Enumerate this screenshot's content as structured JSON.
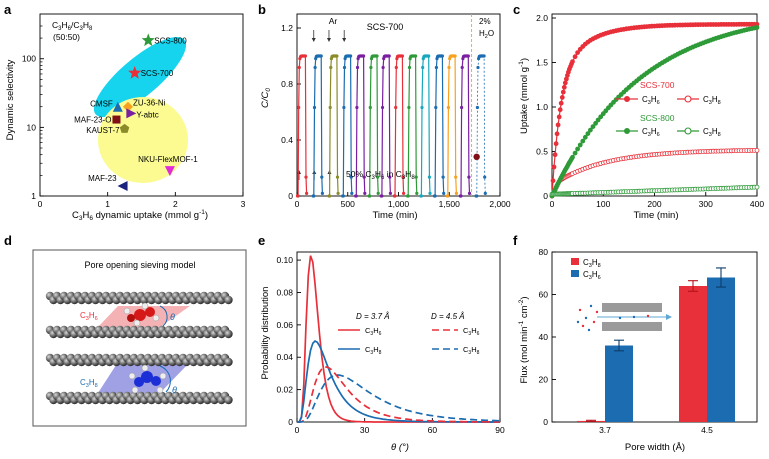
{
  "colors": {
    "red": "#e8303a",
    "blue": "#1b6cb0",
    "green": "#2e9a38",
    "cyan": "#17d4ee",
    "yellow": "#fbfb92",
    "navy": "#1a237e",
    "magenta": "#e22bd8",
    "purple": "#7b1fa2",
    "olive": "#8b8b2a",
    "orange": "#f7a21e",
    "maroon": "#7f1016",
    "sheet": "#5a5a5a"
  },
  "panel_labels": {
    "a": "a",
    "b": "b",
    "c": "c",
    "d": "d",
    "e": "e",
    "f": "f"
  },
  "chart_data": [
    {
      "id": "a",
      "type": "scatter",
      "xlabel": "C3H6 dynamic uptake (mmol g-1)",
      "xlabel_parts": [
        "C",
        "3",
        "H",
        "6",
        " dynamic uptake (mmol g",
        "-1",
        ")"
      ],
      "ylabel": "Dynamic selectivity",
      "xlim": [
        0,
        3
      ],
      "ylim_log": [
        1,
        300
      ],
      "xticks": [
        "0",
        "1",
        "2",
        "3"
      ],
      "yticks": [
        "1",
        "10",
        "100"
      ],
      "title_lines": [
        "C3H6/C3H8",
        "(50:50)"
      ],
      "points": [
        {
          "label": "SCS-800",
          "x": 1.6,
          "y": 185,
          "marker": "star",
          "color": "green"
        },
        {
          "label": "SCS-700",
          "x": 1.4,
          "y": 62,
          "marker": "star",
          "color": "red"
        },
        {
          "label": "CMSF",
          "x": 1.15,
          "y": 20,
          "marker": "triangle",
          "color": "blue"
        },
        {
          "label": "ZU-36-Ni",
          "x": 1.3,
          "y": 20,
          "marker": "diamond",
          "color": "orange"
        },
        {
          "label": "Y-abtc",
          "x": 1.35,
          "y": 16,
          "marker": "triangle-right",
          "color": "purple"
        },
        {
          "label": "MAF-23-O",
          "x": 1.13,
          "y": 13,
          "marker": "square",
          "color": "maroon"
        },
        {
          "label": "KAUST-7",
          "x": 1.25,
          "y": 9.5,
          "marker": "pentagon",
          "color": "olive"
        },
        {
          "label": "NKU-FlexMOF-1",
          "x": 1.92,
          "y": 2.3,
          "marker": "triangle-down",
          "color": "magenta"
        },
        {
          "label": "MAF-23",
          "x": 1.22,
          "y": 1.4,
          "marker": "triangle-left",
          "color": "navy"
        }
      ]
    },
    {
      "id": "b",
      "type": "line",
      "title": "SCS-700",
      "xlabel": "Time (min)",
      "ylabel": "C/C0",
      "xlim": [
        0,
        2000
      ],
      "ylim": [
        0,
        1.3
      ],
      "xticks": [
        "0",
        "500",
        "1,000",
        "1,500",
        "2,000"
      ],
      "yticks": [
        "0",
        "0.4",
        "0.8",
        "1.2"
      ],
      "annotations": [
        "Ar",
        "2%",
        "H2O",
        "50% C3H6 in C3H8"
      ],
      "cycles": [
        {
          "start": 5,
          "color": "#e8303a"
        },
        {
          "start": 160,
          "color": "#1b6cb0"
        },
        {
          "start": 315,
          "color": "#8b8b2a"
        },
        {
          "start": 450,
          "color": "#1b6cb0"
        },
        {
          "start": 578,
          "color": "#7b1fa2"
        },
        {
          "start": 710,
          "color": "#2e9a38"
        },
        {
          "start": 830,
          "color": "#7b1fa2"
        },
        {
          "start": 960,
          "color": "#e8303a"
        },
        {
          "start": 1090,
          "color": "#2e9a38"
        },
        {
          "start": 1220,
          "color": "#17a8bd"
        },
        {
          "start": 1355,
          "color": "#1b6cb0"
        },
        {
          "start": 1480,
          "color": "#f7a21e"
        },
        {
          "start": 1610,
          "color": "#7b1fa2"
        },
        {
          "start": 1765,
          "color": "#1b6cb0"
        }
      ],
      "cycle_plateau": 1.0,
      "water_time": 1720,
      "water_point": {
        "x": 1770,
        "y": 0.28
      }
    },
    {
      "id": "c",
      "type": "line",
      "xlabel": "Time (min)",
      "ylabel": "Uptake (mmol g-1)",
      "xlim": [
        0,
        400
      ],
      "ylim": [
        0,
        2.0
      ],
      "xticks": [
        "0",
        "100",
        "200",
        "300",
        "400"
      ],
      "yticks": [
        "0",
        "0.5",
        "1.0",
        "1.5",
        "2.0"
      ],
      "series": [
        {
          "name": "SCS-700 C3H6",
          "color": "red",
          "filled": true,
          "model": "fast",
          "max": 1.93,
          "k": 0.06
        },
        {
          "name": "SCS-700 C3H8",
          "color": "red",
          "filled": false,
          "model": "slow",
          "max": 0.4,
          "k": 0.01
        },
        {
          "name": "SCS-800 C3H6",
          "color": "green",
          "filled": true,
          "model": "slow",
          "max": 2.1,
          "k": 0.0058
        },
        {
          "name": "SCS-800 C3H8",
          "color": "green",
          "filled": false,
          "model": "linear",
          "max": 0.08,
          "k": 0
        }
      ],
      "legend": {
        "scs700": "SCS-700",
        "scs800": "SCS-800",
        "c3h6": "C3H6",
        "c3h8": "C3H8"
      }
    },
    {
      "id": "e",
      "type": "line",
      "xlabel": "θ (°)",
      "ylabel": "Probability distribution",
      "xlim": [
        0,
        90
      ],
      "ylim": [
        0,
        0.105
      ],
      "xticks": [
        "0",
        "30",
        "60",
        "90"
      ],
      "yticks": [
        "0",
        "0.02",
        "0.04",
        "0.06",
        "0.08",
        "0.10"
      ],
      "legend": {
        "d37": "D = 3.7 Å",
        "d45": "D = 4.5 Å",
        "c3h6": "C3H6",
        "c3h8": "C3H8"
      },
      "series": [
        {
          "name": "3.7 Å C3H6",
          "color": "red",
          "dash": false,
          "mean_log": 2.0,
          "sigma": 0.42,
          "scale": 0.103
        },
        {
          "name": "3.7 Å C3H8",
          "color": "blue",
          "dash": false,
          "mean_log": 2.45,
          "sigma": 0.6,
          "scale": 0.05
        },
        {
          "name": "4.5 Å C3H6",
          "color": "red",
          "dash": true,
          "mean_log": 2.85,
          "sigma": 0.55,
          "scale": 0.034
        },
        {
          "name": "4.5 Å C3H8",
          "color": "blue",
          "dash": true,
          "mean_log": 3.25,
          "sigma": 0.6,
          "scale": 0.029
        }
      ]
    },
    {
      "id": "f",
      "type": "bar",
      "xlabel": "Pore width (Å)",
      "ylabel": "Flux (mol min-1 cm-2)",
      "categories": [
        "3.7",
        "4.5"
      ],
      "ylim": [
        0,
        80
      ],
      "yticks": [
        "0",
        "20",
        "40",
        "60",
        "80"
      ],
      "series": [
        {
          "name": "C3H8",
          "color": "red",
          "values": [
            0.5,
            64
          ],
          "errors": [
            0.3,
            2.5
          ]
        },
        {
          "name": "C3H6",
          "color": "blue",
          "values": [
            36,
            68
          ],
          "errors": [
            2.5,
            4.5
          ]
        }
      ]
    }
  ],
  "panel_d": {
    "title": "Pore opening sieving model",
    "label_c3h6": "C3H6",
    "label_c3h8": "C3H8",
    "theta": "θ"
  }
}
